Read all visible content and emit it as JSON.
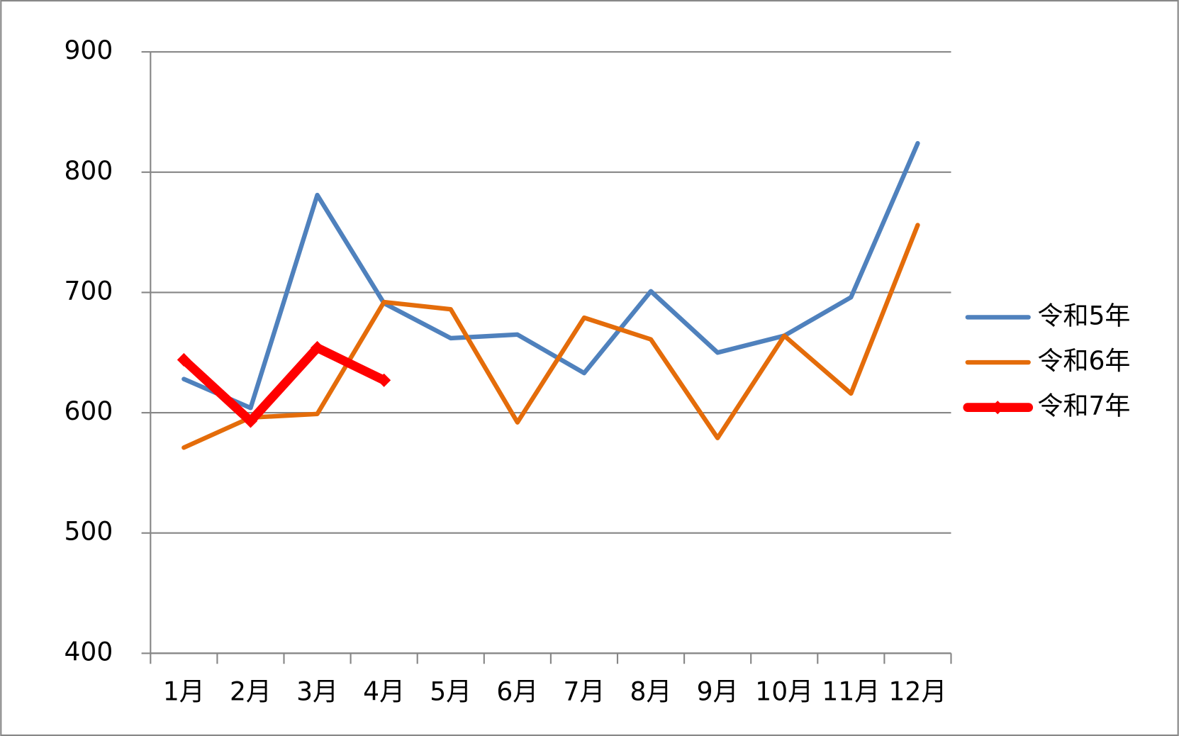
{
  "chart_data": {
    "type": "line",
    "categories": [
      "1月",
      "2月",
      "3月",
      "4月",
      "5月",
      "6月",
      "7月",
      "8月",
      "9月",
      "10月",
      "11月",
      "12月"
    ],
    "series": [
      {
        "name": "令和5年",
        "color": "#4f81bd",
        "width": 6,
        "values": [
          628,
          604,
          781,
          691,
          662,
          665,
          633,
          701,
          650,
          664,
          696,
          824
        ]
      },
      {
        "name": "令和6年",
        "color": "#e46c0a",
        "width": 6,
        "values": [
          571,
          596,
          599,
          692,
          686,
          592,
          679,
          661,
          579,
          664,
          616,
          756
        ]
      },
      {
        "name": "令和7年",
        "color": "#ff0000",
        "width": 12,
        "marker": "diamond",
        "values": [
          644,
          593,
          654,
          627,
          null,
          null,
          null,
          null,
          null,
          null,
          null,
          null
        ]
      }
    ],
    "ylim": [
      400,
      900
    ],
    "yticks": [
      400,
      500,
      600,
      700,
      800,
      900
    ],
    "grid": true,
    "legend": "right"
  }
}
